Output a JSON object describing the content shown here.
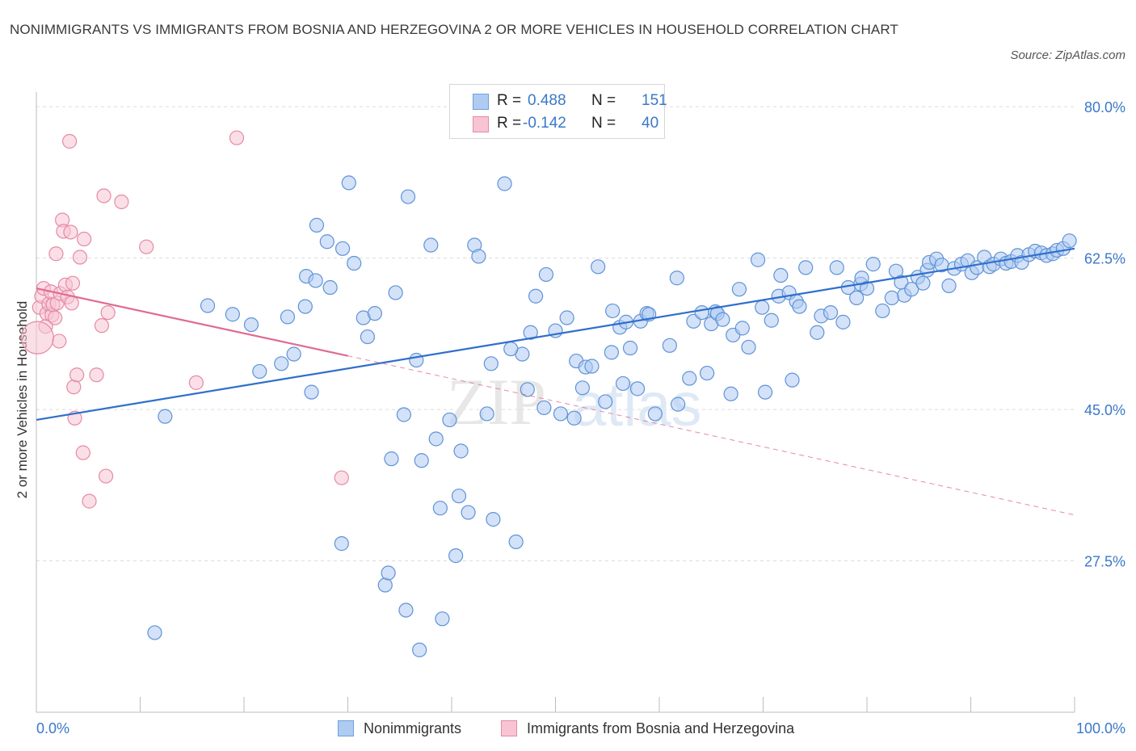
{
  "title": "NONIMMIGRANTS VS IMMIGRANTS FROM BOSNIA AND HERZEGOVINA 2 OR MORE VEHICLES IN HOUSEHOLD CORRELATION CHART",
  "source": "Source: ZipAtlas.com",
  "watermark": {
    "zip": "ZIP",
    "atlas": "atlas"
  },
  "legend": {
    "rows": [
      {
        "r_label": "R =",
        "r_value": "0.488",
        "n_label": "N =",
        "n_value": "151",
        "color": "#aecbf2",
        "border": "#6f9fd9"
      },
      {
        "r_label": "R =",
        "r_value": "-0.142",
        "n_label": "N =",
        "n_value": "40",
        "color": "#f8c4d3",
        "border": "#e48aa6"
      }
    ]
  },
  "bottom_legend": [
    {
      "label": "Nonimmigrants",
      "color": "#aecbf2",
      "border": "#6f9fd9"
    },
    {
      "label": "Immigrants from Bosnia and Herzegovina",
      "color": "#f8c4d3",
      "border": "#e48aa6"
    }
  ],
  "colors": {
    "blue": "#3b78c8",
    "blue_line": "#2f6fcc",
    "pink_line": "#e06a92",
    "grid": "#dcdcdc"
  },
  "chart_data": {
    "type": "scatter",
    "title": "NONIMMIGRANTS VS IMMIGRANTS FROM BOSNIA AND HERZEGOVINA 2 OR MORE VEHICLES IN HOUSEHOLD CORRELATION CHART",
    "xlabel": "",
    "ylabel": "2 or more Vehicles in Household",
    "xlim": [
      0,
      100
    ],
    "ylim": [
      10,
      83
    ],
    "x_tick_labels": [
      "0.0%",
      "100.0%"
    ],
    "y_ticks": [
      27.5,
      45.0,
      62.5,
      80.0
    ],
    "y_tick_labels": [
      "27.5%",
      "45.0%",
      "62.5%",
      "80.0%"
    ],
    "grid": true,
    "legend_position": "top-center",
    "series": [
      {
        "name": "Nonimmigrants",
        "trend": {
          "x": [
            0,
            100
          ],
          "y": [
            43.8,
            63.6
          ]
        },
        "points": [
          [
            11.4,
            19.2
          ],
          [
            12.4,
            44.2
          ],
          [
            21.5,
            49.4
          ],
          [
            24.2,
            55.7
          ],
          [
            24.8,
            51.4
          ],
          [
            25.9,
            56.9
          ],
          [
            26.0,
            60.4
          ],
          [
            26.9,
            59.9
          ],
          [
            27.0,
            66.3
          ],
          [
            28.0,
            64.4
          ],
          [
            28.3,
            59.1
          ],
          [
            29.4,
            29.5
          ],
          [
            29.5,
            63.6
          ],
          [
            30.1,
            71.2
          ],
          [
            30.6,
            61.9
          ],
          [
            31.5,
            55.6
          ],
          [
            32.6,
            56.1
          ],
          [
            33.6,
            24.7
          ],
          [
            33.9,
            26.1
          ],
          [
            34.2,
            39.3
          ],
          [
            34.6,
            58.5
          ],
          [
            35.4,
            44.4
          ],
          [
            35.6,
            21.8
          ],
          [
            35.8,
            69.6
          ],
          [
            36.9,
            17.2
          ],
          [
            37.1,
            39.1
          ],
          [
            38.0,
            64.0
          ],
          [
            38.5,
            41.6
          ],
          [
            38.9,
            33.6
          ],
          [
            39.1,
            20.8
          ],
          [
            39.8,
            43.8
          ],
          [
            40.4,
            28.1
          ],
          [
            40.7,
            35.0
          ],
          [
            40.9,
            40.2
          ],
          [
            41.6,
            33.1
          ],
          [
            42.2,
            64.0
          ],
          [
            42.6,
            62.7
          ],
          [
            43.4,
            44.5
          ],
          [
            44.0,
            32.3
          ],
          [
            45.1,
            71.1
          ],
          [
            46.2,
            29.7
          ],
          [
            46.8,
            51.4
          ],
          [
            47.6,
            53.9
          ],
          [
            48.1,
            58.1
          ],
          [
            49.1,
            60.6
          ],
          [
            50.0,
            54.1
          ],
          [
            51.1,
            55.6
          ],
          [
            52.0,
            50.6
          ],
          [
            52.6,
            47.5
          ],
          [
            52.9,
            49.9
          ],
          [
            53.5,
            50.0
          ],
          [
            54.1,
            61.5
          ],
          [
            55.4,
            51.6
          ],
          [
            55.5,
            56.4
          ],
          [
            56.2,
            54.5
          ],
          [
            56.8,
            55.1
          ],
          [
            57.2,
            52.1
          ],
          [
            57.9,
            47.4
          ],
          [
            58.2,
            55.2
          ],
          [
            58.8,
            56.1
          ],
          [
            59.0,
            56.0
          ],
          [
            61.0,
            52.4
          ],
          [
            61.7,
            60.2
          ],
          [
            62.9,
            48.6
          ],
          [
            63.3,
            55.2
          ],
          [
            64.1,
            56.2
          ],
          [
            65.0,
            54.9
          ],
          [
            65.4,
            56.3
          ],
          [
            65.6,
            56.1
          ],
          [
            66.1,
            55.4
          ],
          [
            67.1,
            53.6
          ],
          [
            67.7,
            58.9
          ],
          [
            68.0,
            54.4
          ],
          [
            68.6,
            52.2
          ],
          [
            69.5,
            62.3
          ],
          [
            69.9,
            56.8
          ],
          [
            70.8,
            55.3
          ],
          [
            71.5,
            58.1
          ],
          [
            71.7,
            60.5
          ],
          [
            72.5,
            58.5
          ],
          [
            73.2,
            57.5
          ],
          [
            73.5,
            56.9
          ],
          [
            74.1,
            61.4
          ],
          [
            75.2,
            53.9
          ],
          [
            75.6,
            55.8
          ],
          [
            76.5,
            56.2
          ],
          [
            77.1,
            61.4
          ],
          [
            77.7,
            55.1
          ],
          [
            78.2,
            59.1
          ],
          [
            79.0,
            57.9
          ],
          [
            79.4,
            59.5
          ],
          [
            79.5,
            60.2
          ],
          [
            80.0,
            59.0
          ],
          [
            80.6,
            61.8
          ],
          [
            81.5,
            56.4
          ],
          [
            82.4,
            57.9
          ],
          [
            82.8,
            61.0
          ],
          [
            83.3,
            59.7
          ],
          [
            83.6,
            58.2
          ],
          [
            84.3,
            58.9
          ],
          [
            84.9,
            60.3
          ],
          [
            85.4,
            59.6
          ],
          [
            85.8,
            61.1
          ],
          [
            86.0,
            62.0
          ],
          [
            86.7,
            62.4
          ],
          [
            87.2,
            61.7
          ],
          [
            87.9,
            59.3
          ],
          [
            88.4,
            61.3
          ],
          [
            89.1,
            61.8
          ],
          [
            89.7,
            62.2
          ],
          [
            90.1,
            60.8
          ],
          [
            90.6,
            61.4
          ],
          [
            91.3,
            62.6
          ],
          [
            91.8,
            61.5
          ],
          [
            92.2,
            61.8
          ],
          [
            92.9,
            62.4
          ],
          [
            93.4,
            61.9
          ],
          [
            93.9,
            62.1
          ],
          [
            94.5,
            62.8
          ],
          [
            94.9,
            62.0
          ],
          [
            95.6,
            62.9
          ],
          [
            96.2,
            63.3
          ],
          [
            96.8,
            63.1
          ],
          [
            97.3,
            62.8
          ],
          [
            97.9,
            63.0
          ],
          [
            98.3,
            63.4
          ],
          [
            98.9,
            63.6
          ],
          [
            99.5,
            64.5
          ],
          [
            16.5,
            57.0
          ],
          [
            18.9,
            56.0
          ],
          [
            20.7,
            54.8
          ],
          [
            23.6,
            50.3
          ],
          [
            26.5,
            47.0
          ],
          [
            31.9,
            53.4
          ],
          [
            36.6,
            50.7
          ],
          [
            43.8,
            50.3
          ],
          [
            45.7,
            52.0
          ],
          [
            47.3,
            47.3
          ],
          [
            48.9,
            45.2
          ],
          [
            50.5,
            44.5
          ],
          [
            51.8,
            44.0
          ],
          [
            54.8,
            45.9
          ],
          [
            56.5,
            48.0
          ],
          [
            59.6,
            44.5
          ],
          [
            61.8,
            45.6
          ],
          [
            64.6,
            49.2
          ],
          [
            66.9,
            46.8
          ],
          [
            70.2,
            47.0
          ],
          [
            72.8,
            48.4
          ]
        ]
      },
      {
        "name": "Immigrants from Bosnia and Herzegovina",
        "trend_solid": {
          "x": [
            0,
            30
          ],
          "y": [
            59.0,
            51.2
          ]
        },
        "trend_dashed": {
          "x": [
            30,
            100
          ],
          "y": [
            51.2,
            32.8
          ]
        },
        "points": [
          [
            0.3,
            56.8
          ],
          [
            0.5,
            58.1
          ],
          [
            0.7,
            59.0
          ],
          [
            0.9,
            54.6
          ],
          [
            1.0,
            56.1
          ],
          [
            1.2,
            57.2
          ],
          [
            1.4,
            58.6
          ],
          [
            1.5,
            55.9
          ],
          [
            1.6,
            57.1
          ],
          [
            1.8,
            55.6
          ],
          [
            1.9,
            63.0
          ],
          [
            2.0,
            57.3
          ],
          [
            2.2,
            52.9
          ],
          [
            2.3,
            58.4
          ],
          [
            2.5,
            66.9
          ],
          [
            2.6,
            65.6
          ],
          [
            2.8,
            59.4
          ],
          [
            3.0,
            58.0
          ],
          [
            3.2,
            76.0
          ],
          [
            3.3,
            65.5
          ],
          [
            3.4,
            57.3
          ],
          [
            3.5,
            59.6
          ],
          [
            3.6,
            47.6
          ],
          [
            3.7,
            44.0
          ],
          [
            3.9,
            49.0
          ],
          [
            4.2,
            62.6
          ],
          [
            4.5,
            40.0
          ],
          [
            4.6,
            64.7
          ],
          [
            5.1,
            34.4
          ],
          [
            5.8,
            49.0
          ],
          [
            6.3,
            54.7
          ],
          [
            6.5,
            69.7
          ],
          [
            6.7,
            37.3
          ],
          [
            6.9,
            56.2
          ],
          [
            8.2,
            69.0
          ],
          [
            10.6,
            63.8
          ],
          [
            15.4,
            48.1
          ],
          [
            19.3,
            76.4
          ],
          [
            29.4,
            37.1
          ],
          [
            0.1,
            53.3
          ]
        ]
      }
    ]
  }
}
